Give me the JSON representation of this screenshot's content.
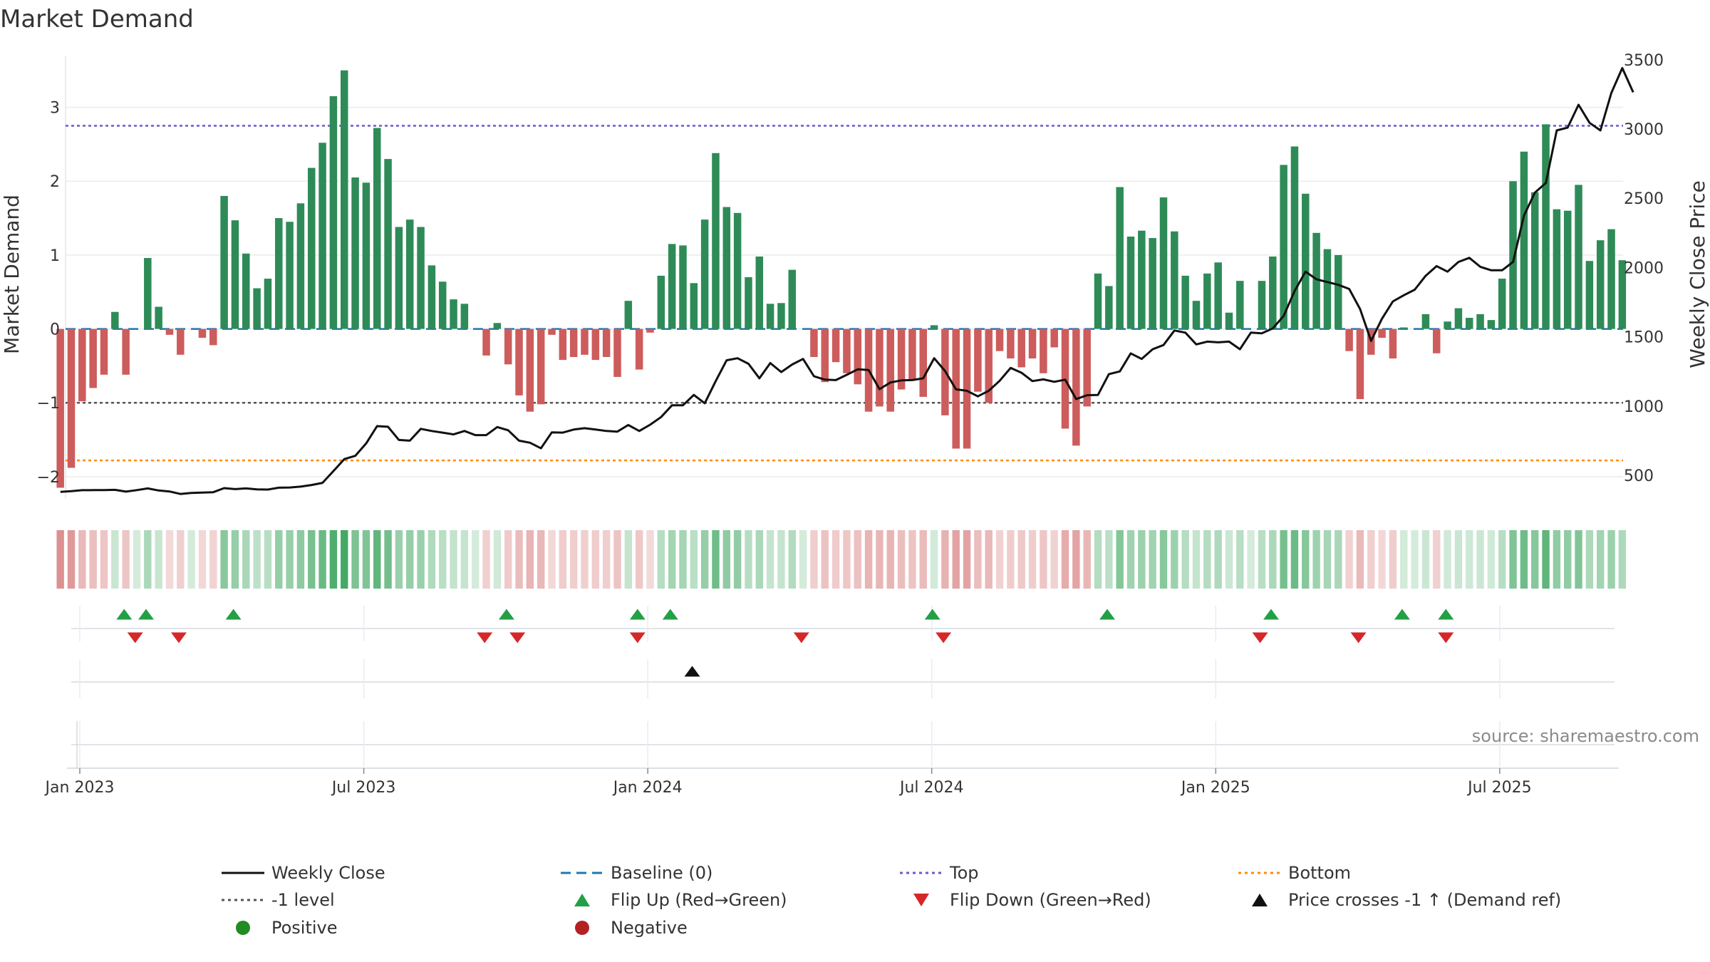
{
  "chart_data": {
    "type": "bar",
    "title": "Market Demand",
    "ylabel_left": "Market Demand",
    "ylabel_right": "Weekly Close Price",
    "left_ylim": [
      -2.3,
      3.7
    ],
    "left_yticks": [
      -2,
      -1,
      0,
      1,
      2,
      3
    ],
    "right_ylim": [
      330,
      3530
    ],
    "right_yticks": [
      500,
      1000,
      1500,
      2000,
      2500,
      3000,
      3500
    ],
    "x_ticks": [
      "Jan 2023",
      "Jul 2023",
      "Jan 2024",
      "Jul 2024",
      "Jan 2025",
      "Jul 2025"
    ],
    "x_tick_weeks": [
      0,
      26,
      52,
      78,
      104,
      130
    ],
    "first_week_index": -1,
    "reference_lines": {
      "top": 2.75,
      "minus_one": -1,
      "bottom": -1.78
    },
    "weekly_demand": [
      -2.15,
      -1.88,
      -0.98,
      -0.8,
      -0.62,
      0.23,
      -0.62,
      0.0,
      0.96,
      0.3,
      -0.08,
      -0.35,
      0.0,
      -0.12,
      -0.22,
      1.8,
      1.47,
      1.02,
      0.55,
      0.68,
      1.5,
      1.45,
      1.7,
      2.18,
      2.52,
      3.15,
      3.5,
      2.05,
      1.98,
      2.72,
      2.3,
      1.38,
      1.48,
      1.38,
      0.86,
      0.64,
      0.4,
      0.34,
      0.0,
      -0.36,
      0.08,
      -0.48,
      -0.9,
      -1.12,
      -1.02,
      -0.08,
      -0.42,
      -0.38,
      -0.35,
      -0.42,
      -0.38,
      -0.65,
      0.38,
      -0.55,
      -0.05,
      0.72,
      1.15,
      1.13,
      0.62,
      1.48,
      2.38,
      1.65,
      1.57,
      0.7,
      0.98,
      0.34,
      0.35,
      0.8,
      0.0,
      -0.38,
      -0.72,
      -0.45,
      -0.6,
      -0.75,
      -1.12,
      -1.05,
      -1.12,
      -0.82,
      -0.68,
      -0.92,
      0.05,
      -1.17,
      -1.62,
      -1.62,
      -0.85,
      -1.0,
      -0.3,
      -0.4,
      -0.52,
      -0.4,
      -0.6,
      -0.25,
      -1.35,
      -1.58,
      -1.05,
      0.75,
      0.58,
      1.92,
      1.25,
      1.33,
      1.23,
      1.78,
      1.32,
      0.72,
      0.38,
      0.75,
      0.9,
      0.22,
      0.65,
      0.0,
      0.65,
      0.98,
      2.22,
      2.47,
      1.83,
      1.3,
      1.08,
      1.0,
      -0.3,
      -0.95,
      -0.35,
      -0.12,
      -0.4,
      0.02,
      0.0,
      0.2,
      -0.33,
      0.1,
      0.28,
      0.15,
      0.2,
      0.12,
      0.68,
      2.0,
      2.4,
      1.85,
      2.77,
      1.62,
      1.6,
      1.95,
      0.92,
      1.2,
      1.35,
      0.93
    ],
    "weekly_close": [
      380,
      385,
      392,
      393,
      393,
      395,
      382,
      393,
      405,
      390,
      383,
      365,
      372,
      375,
      378,
      407,
      400,
      405,
      398,
      397,
      410,
      412,
      418,
      430,
      445,
      530,
      617,
      640,
      730,
      855,
      850,
      755,
      750,
      835,
      820,
      808,
      795,
      820,
      790,
      790,
      848,
      825,
      750,
      735,
      695,
      810,
      808,
      830,
      840,
      830,
      820,
      815,
      863,
      820,
      865,
      920,
      1005,
      1005,
      1080,
      1020,
      1180,
      1330,
      1345,
      1305,
      1200,
      1310,
      1245,
      1300,
      1340,
      1215,
      1190,
      1187,
      1225,
      1265,
      1260,
      1122,
      1170,
      1185,
      1187,
      1200,
      1345,
      1253,
      1120,
      1110,
      1070,
      1110,
      1182,
      1275,
      1240,
      1180,
      1192,
      1175,
      1190,
      1050,
      1078,
      1080,
      1230,
      1250,
      1380,
      1340,
      1410,
      1440,
      1545,
      1530,
      1445,
      1465,
      1460,
      1465,
      1410,
      1530,
      1525,
      1560,
      1650,
      1830,
      1970,
      1915,
      1895,
      1875,
      1845,
      1700,
      1470,
      1630,
      1755,
      1800,
      1840,
      1940,
      2010,
      1970,
      2040,
      2070,
      2005,
      1980,
      1980,
      2040,
      2375,
      2540,
      2610,
      2990,
      3010,
      3175,
      3045,
      2990,
      3260,
      3440,
      3265
    ],
    "flip_up_weeks": [
      4,
      6,
      14,
      39,
      51,
      54,
      78,
      94,
      109,
      121,
      125
    ],
    "flip_down_weeks": [
      5,
      9,
      37,
      40,
      51,
      66,
      79,
      108,
      117,
      125
    ],
    "price_cross_weeks": [
      56
    ],
    "legend": {
      "weekly_close": "Weekly Close",
      "baseline": "Baseline (0)",
      "top": "Top",
      "bottom": "Bottom",
      "minus_one": "-1 level",
      "flip_up": "Flip Up (Red→Green)",
      "flip_down": "Flip Down (Green→Red)",
      "price_cross": "Price crosses -1 ↑ (Demand ref)",
      "positive": "Positive",
      "negative": "Negative"
    },
    "source": "source: sharemaestro.com"
  },
  "colors": {
    "positive": "#2e8b57",
    "negative": "#cd5c5c",
    "close_line": "#111111",
    "baseline": "#1f77b4",
    "top": "#6a5acd",
    "bottom": "#ff8c00",
    "minus_one": "#555555",
    "flip_up": "#22a045",
    "flip_down": "#d62728",
    "legend_positive": "#228b22",
    "legend_negative": "#b22222"
  }
}
